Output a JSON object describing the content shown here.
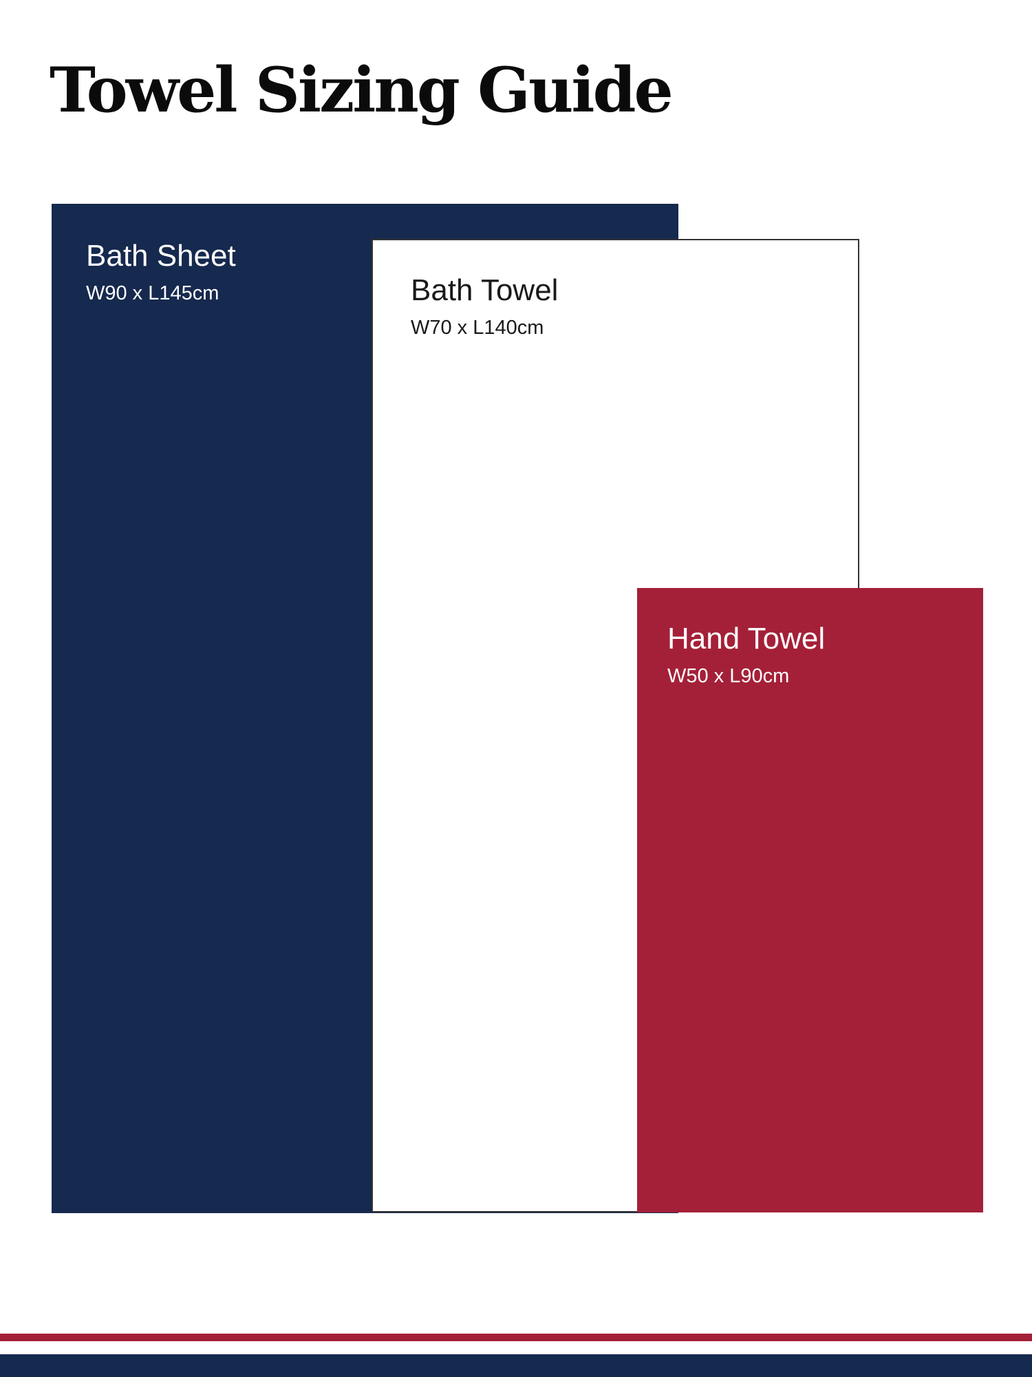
{
  "page": {
    "title": "Towel Sizing Guide",
    "background_color": "#ffffff",
    "title_color": "#0b0b0b"
  },
  "towels": [
    {
      "name": "Bath Sheet",
      "dimensions": "W90 x L145cm",
      "width_cm": 90,
      "length_cm": 145,
      "fill_color": "#16294e",
      "text_color": "#ffffff"
    },
    {
      "name": "Bath Towel",
      "dimensions": "W70 x L140cm",
      "width_cm": 70,
      "length_cm": 140,
      "fill_color": "#ffffff",
      "border_color": "#333333",
      "text_color": "#1a1a1a"
    },
    {
      "name": "Hand Towel",
      "dimensions": "W50 x L90cm",
      "width_cm": 50,
      "length_cm": 90,
      "fill_color": "#a42038",
      "text_color": "#ffffff"
    }
  ],
  "footer": {
    "stripe_red_color": "#a42038",
    "band_navy_color": "#16294e"
  }
}
